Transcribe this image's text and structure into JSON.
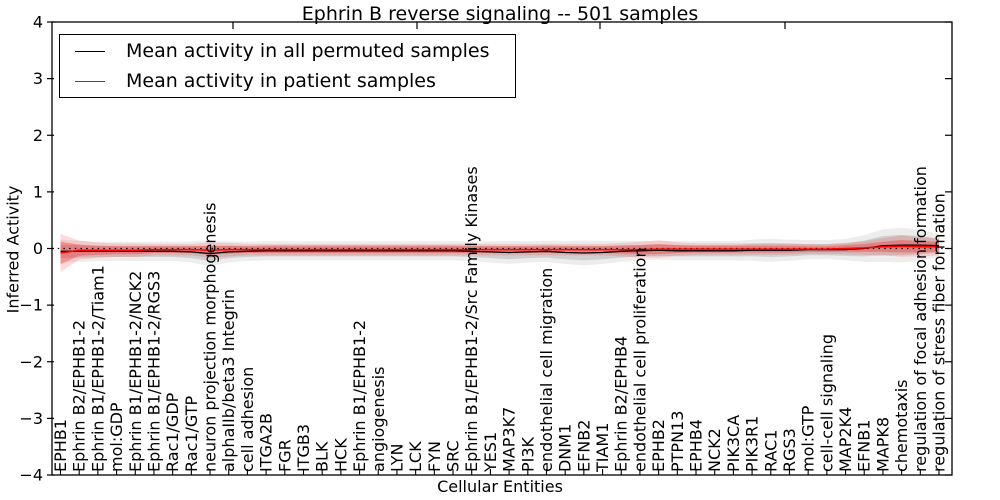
{
  "figure": {
    "title": "Ephrin B reverse signaling -- 501 samples",
    "xlabel": "Cellular Entities",
    "ylabel": "Inferred Activity"
  },
  "legend": {
    "items": [
      {
        "label": "Mean activity in all permuted samples",
        "color": "#000000"
      },
      {
        "label": "Mean activity in patient samples",
        "color": "#ff0000"
      }
    ]
  },
  "chart_data": {
    "type": "line",
    "title": "Ephrin B reverse signaling -- 501 samples",
    "xlabel": "Cellular Entities",
    "ylabel": "Inferred Activity",
    "ylim": [
      -4,
      4
    ],
    "yticks": [
      -4,
      -3,
      -2,
      -1,
      0,
      1,
      2,
      3,
      4
    ],
    "grid": false,
    "legend_position": "upper left",
    "zero_reference_line": "dotted black line at y=0",
    "x_tick_label_rotation": 90,
    "categories": [
      "EPHB1",
      "Ephrin B2/EPHB1-2",
      "Ephrin B1/EPHB1-2/Tiam1",
      "mol:GDP",
      "Ephrin B1/EPHB1-2/NCK2",
      "Ephrin B1/EPHB1-2/RGS3",
      "Rac1/GDP",
      "Rac1/GTP",
      "neuron projection morphogenesis",
      "alphaIIb/beta3 Integrin",
      "cell adhesion",
      "ITGA2B",
      "FGR",
      "ITGB3",
      "BLK",
      "HCK",
      "Ephrin B1/EPHB1-2",
      "angiogenesis",
      "LYN",
      "LCK",
      "FYN",
      "SRC",
      "Ephrin B1/EPHB1-2/Src Family Kinases",
      "YES1",
      "MAP3K7",
      "PI3K",
      "endothelial cell migration",
      "DNM1",
      "EFNB2",
      "TIAM1",
      "Ephrin B2/EPHB4",
      "endothelial cell proliferation",
      "EPHB2",
      "PTPN13",
      "EPHB4",
      "NCK2",
      "PIK3CA",
      "PIK3R1",
      "RAC1",
      "RGS3",
      "mol:GTP",
      "cell-cell signaling",
      "MAP2K4",
      "EFNB1",
      "MAPK8",
      "chemotaxis",
      "regulation of focal adhesion formation",
      "regulation of stress fiber formation"
    ],
    "series": [
      {
        "name": "Mean activity in all permuted samples",
        "color": "#000000",
        "band_color": "#000000",
        "band_opacity_inner": 0.12,
        "band_opacity_outer": 0.07,
        "values": [
          -0.05,
          -0.05,
          -0.05,
          -0.05,
          -0.05,
          -0.05,
          -0.05,
          -0.06,
          -0.09,
          -0.06,
          -0.05,
          -0.04,
          -0.04,
          -0.04,
          -0.04,
          -0.04,
          -0.04,
          -0.04,
          -0.04,
          -0.04,
          -0.04,
          -0.04,
          -0.05,
          -0.06,
          -0.07,
          -0.06,
          -0.05,
          -0.07,
          -0.08,
          -0.07,
          -0.05,
          -0.04,
          -0.03,
          -0.04,
          -0.04,
          -0.04,
          -0.04,
          -0.03,
          -0.03,
          -0.03,
          -0.02,
          -0.02,
          -0.02,
          0.0,
          0.05,
          0.06,
          0.06,
          0.05
        ],
        "band": [
          0.12,
          0.11,
          0.1,
          0.1,
          0.1,
          0.1,
          0.1,
          0.11,
          0.13,
          0.11,
          0.1,
          0.1,
          0.1,
          0.1,
          0.1,
          0.1,
          0.1,
          0.1,
          0.1,
          0.1,
          0.1,
          0.1,
          0.1,
          0.11,
          0.12,
          0.11,
          0.11,
          0.12,
          0.13,
          0.12,
          0.11,
          0.1,
          0.1,
          0.1,
          0.1,
          0.1,
          0.1,
          0.11,
          0.12,
          0.11,
          0.1,
          0.1,
          0.11,
          0.14,
          0.17,
          0.18,
          0.16,
          0.12
        ]
      },
      {
        "name": "Mean activity in patient samples",
        "color": "#ff0000",
        "band_color": "#ff0000",
        "band_opacity_inner": 0.28,
        "band_opacity_outer": 0.14,
        "values": [
          -0.08,
          -0.03,
          -0.03,
          -0.03,
          -0.03,
          -0.02,
          -0.02,
          -0.02,
          -0.03,
          -0.02,
          -0.02,
          -0.02,
          -0.02,
          -0.02,
          -0.02,
          -0.02,
          -0.02,
          -0.02,
          -0.02,
          -0.02,
          -0.02,
          -0.02,
          -0.02,
          -0.02,
          -0.02,
          -0.02,
          -0.02,
          -0.02,
          -0.02,
          -0.02,
          -0.02,
          -0.02,
          -0.01,
          -0.01,
          -0.01,
          -0.01,
          -0.01,
          -0.01,
          -0.01,
          -0.01,
          -0.01,
          -0.01,
          0.0,
          0.01,
          0.03,
          0.04,
          0.03,
          0.03
        ],
        "band": [
          0.2,
          0.1,
          0.08,
          0.07,
          0.07,
          0.06,
          0.06,
          0.06,
          0.08,
          0.07,
          0.06,
          0.06,
          0.06,
          0.06,
          0.06,
          0.06,
          0.06,
          0.06,
          0.06,
          0.06,
          0.06,
          0.06,
          0.06,
          0.06,
          0.06,
          0.06,
          0.06,
          0.06,
          0.06,
          0.06,
          0.07,
          0.08,
          0.09,
          0.07,
          0.06,
          0.06,
          0.06,
          0.06,
          0.06,
          0.06,
          0.05,
          0.05,
          0.06,
          0.07,
          0.09,
          0.11,
          0.1,
          0.09
        ]
      }
    ]
  }
}
